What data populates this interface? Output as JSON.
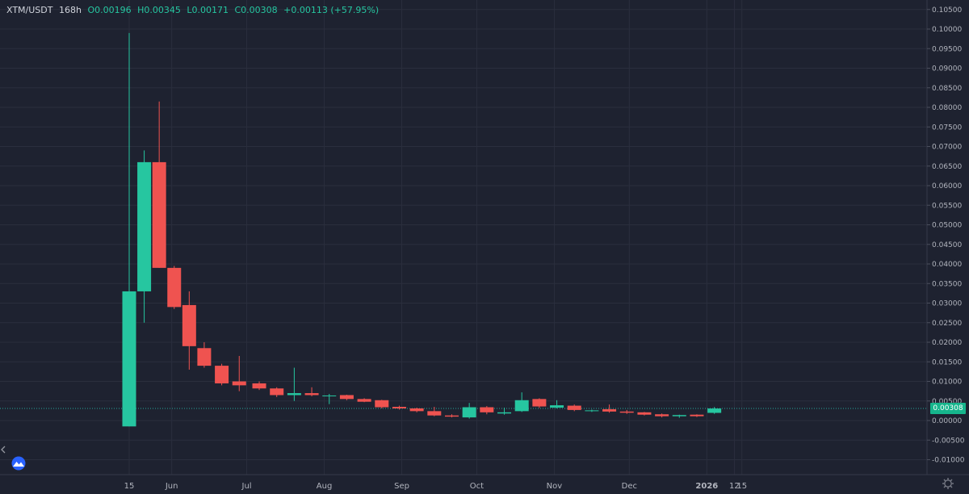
{
  "legend": {
    "symbol": "XTM/USDT",
    "interval": "168h",
    "open": "O0.00196",
    "high": "H0.00345",
    "low": "L0.00171",
    "close": "C0.00308",
    "change": "+0.00113 (+57.95%)"
  },
  "last_price_label": "0.00308",
  "colors": {
    "background": "#1e2230",
    "up": "#26c6a0",
    "down": "#ef5350",
    "grid": "#2a2e3d",
    "axis_text": "#b2b5be",
    "price_line": "#26a69a"
  },
  "chart_data": {
    "type": "candlestick",
    "title": "",
    "xlabel": "",
    "ylabel": "",
    "ylim": [
      -0.0115,
      0.1055
    ],
    "grid": true,
    "y_ticks": [
      "0.10500",
      "0.10000",
      "0.09500",
      "0.09000",
      "0.08500",
      "0.08000",
      "0.07500",
      "0.07000",
      "0.06500",
      "0.06000",
      "0.05500",
      "0.05000",
      "0.04500",
      "0.04000",
      "0.03500",
      "0.03000",
      "0.02500",
      "0.02000",
      "0.01500",
      "0.01000",
      "0.00500",
      "0.00000",
      "-0.00500",
      "-0.01000"
    ],
    "x_ticks": [
      {
        "label": "15",
        "date": "2025-05-15"
      },
      {
        "label": "Jun",
        "date": "2025-06-01"
      },
      {
        "label": "Jul",
        "date": "2025-07-01"
      },
      {
        "label": "Aug",
        "date": "2025-08-01"
      },
      {
        "label": "Sep",
        "date": "2025-09-01"
      },
      {
        "label": "Oct",
        "date": "2025-10-01"
      },
      {
        "label": "Nov",
        "date": "2025-11-01"
      },
      {
        "label": "Dec",
        "date": "2025-12-01"
      },
      {
        "label": "2026",
        "date": "2026-01-01"
      },
      {
        "label": "12",
        "date": "2026-01-12"
      },
      {
        "label": "15",
        "date": "2026-01-15"
      }
    ],
    "candles": [
      {
        "date": "2025-05-15",
        "open": -0.0015,
        "high": 0.099,
        "low": -0.0015,
        "close": 0.033
      },
      {
        "date": "2025-05-21",
        "open": 0.033,
        "high": 0.069,
        "low": 0.025,
        "close": 0.066
      },
      {
        "date": "2025-05-27",
        "open": 0.066,
        "high": 0.0815,
        "low": 0.039,
        "close": 0.039
      },
      {
        "date": "2025-06-02",
        "open": 0.039,
        "high": 0.0395,
        "low": 0.0285,
        "close": 0.029
      },
      {
        "date": "2025-06-08",
        "open": 0.0295,
        "high": 0.033,
        "low": 0.013,
        "close": 0.019
      },
      {
        "date": "2025-06-14",
        "open": 0.0185,
        "high": 0.02,
        "low": 0.0135,
        "close": 0.014
      },
      {
        "date": "2025-06-21",
        "open": 0.014,
        "high": 0.0145,
        "low": 0.009,
        "close": 0.0095
      },
      {
        "date": "2025-06-28",
        "open": 0.01,
        "high": 0.0165,
        "low": 0.0075,
        "close": 0.009
      },
      {
        "date": "2025-07-06",
        "open": 0.0095,
        "high": 0.01,
        "low": 0.0078,
        "close": 0.0082
      },
      {
        "date": "2025-07-13",
        "open": 0.0082,
        "high": 0.0085,
        "low": 0.006,
        "close": 0.0065
      },
      {
        "date": "2025-07-20",
        "open": 0.0065,
        "high": 0.0135,
        "low": 0.005,
        "close": 0.007
      },
      {
        "date": "2025-07-27",
        "open": 0.007,
        "high": 0.0085,
        "low": 0.0062,
        "close": 0.0065
      },
      {
        "date": "2025-08-03",
        "open": 0.0063,
        "high": 0.0068,
        "low": 0.0042,
        "close": 0.0064
      },
      {
        "date": "2025-08-10",
        "open": 0.0065,
        "high": 0.0066,
        "low": 0.0052,
        "close": 0.0055
      },
      {
        "date": "2025-08-17",
        "open": 0.0055,
        "high": 0.0057,
        "low": 0.0047,
        "close": 0.0048
      },
      {
        "date": "2025-08-24",
        "open": 0.0052,
        "high": 0.0053,
        "low": 0.0031,
        "close": 0.0034
      },
      {
        "date": "2025-08-31",
        "open": 0.0035,
        "high": 0.0038,
        "low": 0.0028,
        "close": 0.0031
      },
      {
        "date": "2025-09-07",
        "open": 0.0031,
        "high": 0.0033,
        "low": 0.0021,
        "close": 0.0024
      },
      {
        "date": "2025-09-14",
        "open": 0.0024,
        "high": 0.0035,
        "low": 0.0011,
        "close": 0.0013
      },
      {
        "date": "2025-09-21",
        "open": 0.0013,
        "high": 0.0016,
        "low": 0.0008,
        "close": 0.001
      },
      {
        "date": "2025-09-28",
        "open": 0.0008,
        "high": 0.0045,
        "low": 0.0005,
        "close": 0.0034
      },
      {
        "date": "2025-10-05",
        "open": 0.0034,
        "high": 0.0037,
        "low": 0.0016,
        "close": 0.0021
      },
      {
        "date": "2025-10-12",
        "open": 0.0018,
        "high": 0.0033,
        "low": 0.0015,
        "close": 0.0021
      },
      {
        "date": "2025-10-19",
        "open": 0.0024,
        "high": 0.0072,
        "low": 0.0022,
        "close": 0.0052
      },
      {
        "date": "2025-10-26",
        "open": 0.0055,
        "high": 0.0057,
        "low": 0.0032,
        "close": 0.0036
      },
      {
        "date": "2025-11-02",
        "open": 0.0033,
        "high": 0.0052,
        "low": 0.0031,
        "close": 0.0039
      },
      {
        "date": "2025-11-09",
        "open": 0.0038,
        "high": 0.0041,
        "low": 0.0024,
        "close": 0.0027
      },
      {
        "date": "2025-11-16",
        "open": 0.0025,
        "high": 0.0028,
        "low": 0.0022,
        "close": 0.0026
      },
      {
        "date": "2025-11-23",
        "open": 0.0029,
        "high": 0.0041,
        "low": 0.002,
        "close": 0.0023
      },
      {
        "date": "2025-11-30",
        "open": 0.0023,
        "high": 0.0027,
        "low": 0.0017,
        "close": 0.002
      },
      {
        "date": "2025-12-07",
        "open": 0.0021,
        "high": 0.0022,
        "low": 0.0013,
        "close": 0.0015
      },
      {
        "date": "2025-12-14",
        "open": 0.0016,
        "high": 0.0018,
        "low": 0.0008,
        "close": 0.0011
      },
      {
        "date": "2025-12-21",
        "open": 0.0011,
        "high": 0.0015,
        "low": 0.0007,
        "close": 0.0014
      },
      {
        "date": "2025-12-28",
        "open": 0.0015,
        "high": 0.0016,
        "low": 0.0009,
        "close": 0.0011
      },
      {
        "date": "2026-01-04",
        "open": 0.00196,
        "high": 0.00345,
        "low": 0.00171,
        "close": 0.00308
      }
    ],
    "last_price": 0.00308
  }
}
